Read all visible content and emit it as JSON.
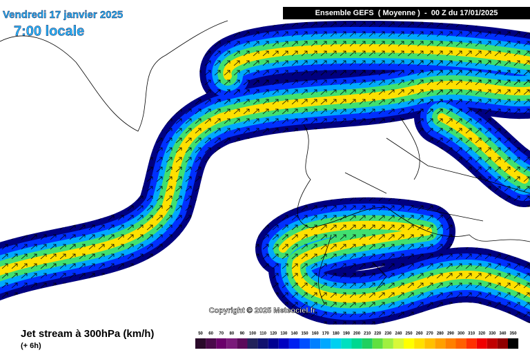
{
  "header": {
    "date": "Vendredi 17 janvier 2025",
    "time": "7:00 locale",
    "model": "Ensemble GEFS  ( Moyenne )  -  00 Z du 17/01/2025"
  },
  "map": {
    "copyright": "Copyright © 2025 Meteociel.fr"
  },
  "footer": {
    "title": "Jet stream à 300hPa (km/h)",
    "lead": "(+ 6h)"
  },
  "legend": {
    "items": [
      {
        "label": "50",
        "color": "#2a0a2a"
      },
      {
        "label": "60",
        "color": "#4a0a4a"
      },
      {
        "label": "70",
        "color": "#6a006a"
      },
      {
        "label": "80",
        "color": "#7a1a7a"
      },
      {
        "label": "90",
        "color": "#5a0a5a"
      },
      {
        "label": "100",
        "color": "#22225a"
      },
      {
        "label": "110",
        "color": "#10106e"
      },
      {
        "label": "120",
        "color": "#000090"
      },
      {
        "label": "130",
        "color": "#0000c0"
      },
      {
        "label": "140",
        "color": "#0020f0"
      },
      {
        "label": "150",
        "color": "#0050ff"
      },
      {
        "label": "160",
        "color": "#0080ff"
      },
      {
        "label": "170",
        "color": "#00a8ff"
      },
      {
        "label": "180",
        "color": "#00d0f0"
      },
      {
        "label": "190",
        "color": "#00e0c0"
      },
      {
        "label": "200",
        "color": "#00d890"
      },
      {
        "label": "210",
        "color": "#20d060"
      },
      {
        "label": "220",
        "color": "#60e040"
      },
      {
        "label": "230",
        "color": "#a0f040"
      },
      {
        "label": "240",
        "color": "#d8f838"
      },
      {
        "label": "250",
        "color": "#ffff00"
      },
      {
        "label": "260",
        "color": "#ffe000"
      },
      {
        "label": "270",
        "color": "#ffc000"
      },
      {
        "label": "280",
        "color": "#ffa000"
      },
      {
        "label": "290",
        "color": "#ff8000"
      },
      {
        "label": "300",
        "color": "#ff6000"
      },
      {
        "label": "310",
        "color": "#ff3000"
      },
      {
        "label": "320",
        "color": "#f00000"
      },
      {
        "label": "330",
        "color": "#c00000"
      },
      {
        "label": "340",
        "color": "#900000"
      },
      {
        "label": "350",
        "color": "#000000"
      }
    ]
  }
}
